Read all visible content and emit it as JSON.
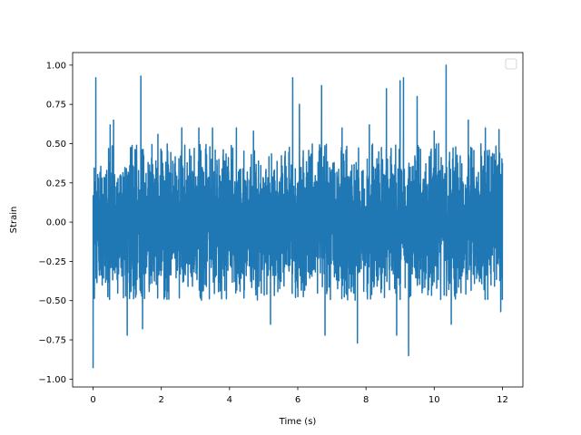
{
  "chart_data": {
    "type": "line",
    "title": "",
    "xlabel": "Time (s)",
    "ylabel": "Strain",
    "xlim": [
      -0.6,
      12.6
    ],
    "ylim": [
      -1.05,
      1.08
    ],
    "x_ticks": [
      0,
      2,
      4,
      6,
      8,
      10,
      12
    ],
    "x_tick_labels": [
      "0",
      "2",
      "4",
      "6",
      "8",
      "10",
      "12"
    ],
    "y_ticks": [
      -1.0,
      -0.75,
      -0.5,
      -0.25,
      0.0,
      0.25,
      0.5,
      0.75,
      1.0
    ],
    "y_tick_labels": [
      "−1.00",
      "−0.75",
      "−0.50",
      "−0.25",
      "0.00",
      "0.25",
      "0.50",
      "0.75",
      "1.00"
    ],
    "grid": false,
    "legend": {
      "placement": "top-right",
      "entries": []
    },
    "series_color": "#1f77b4",
    "series": [
      {
        "x_start": 0,
        "x_end": 12,
        "sample_count": 4800,
        "typical_range": [
          -0.5,
          0.5
        ],
        "y_max": 1.0,
        "y_min": -0.93,
        "peaks": [
          {
            "x": 0.0,
            "y": -0.93
          },
          {
            "x": 0.08,
            "y": 0.92
          },
          {
            "x": 0.5,
            "y": 0.62
          },
          {
            "x": 0.6,
            "y": 0.65
          },
          {
            "x": 1.0,
            "y": -0.72
          },
          {
            "x": 1.4,
            "y": 0.93
          },
          {
            "x": 1.45,
            "y": -0.68
          },
          {
            "x": 1.9,
            "y": 0.56
          },
          {
            "x": 2.6,
            "y": 0.6
          },
          {
            "x": 3.1,
            "y": 0.6
          },
          {
            "x": 3.5,
            "y": 0.6
          },
          {
            "x": 4.2,
            "y": 0.6
          },
          {
            "x": 4.7,
            "y": 0.58
          },
          {
            "x": 5.2,
            "y": -0.65
          },
          {
            "x": 5.85,
            "y": 0.92
          },
          {
            "x": 6.05,
            "y": 0.75
          },
          {
            "x": 6.7,
            "y": 0.87
          },
          {
            "x": 6.8,
            "y": -0.72
          },
          {
            "x": 7.3,
            "y": 0.6
          },
          {
            "x": 7.75,
            "y": -0.77
          },
          {
            "x": 8.1,
            "y": 0.62
          },
          {
            "x": 8.6,
            "y": 0.85
          },
          {
            "x": 8.9,
            "y": -0.72
          },
          {
            "x": 9.0,
            "y": 0.9
          },
          {
            "x": 9.1,
            "y": 0.92
          },
          {
            "x": 9.25,
            "y": -0.85
          },
          {
            "x": 9.5,
            "y": 0.8
          },
          {
            "x": 10.0,
            "y": 0.58
          },
          {
            "x": 10.35,
            "y": 1.0
          },
          {
            "x": 10.5,
            "y": -0.65
          },
          {
            "x": 11.0,
            "y": 0.65
          },
          {
            "x": 11.5,
            "y": 0.6
          },
          {
            "x": 11.9,
            "y": 0.59
          },
          {
            "x": 11.95,
            "y": -0.57
          }
        ]
      }
    ]
  }
}
